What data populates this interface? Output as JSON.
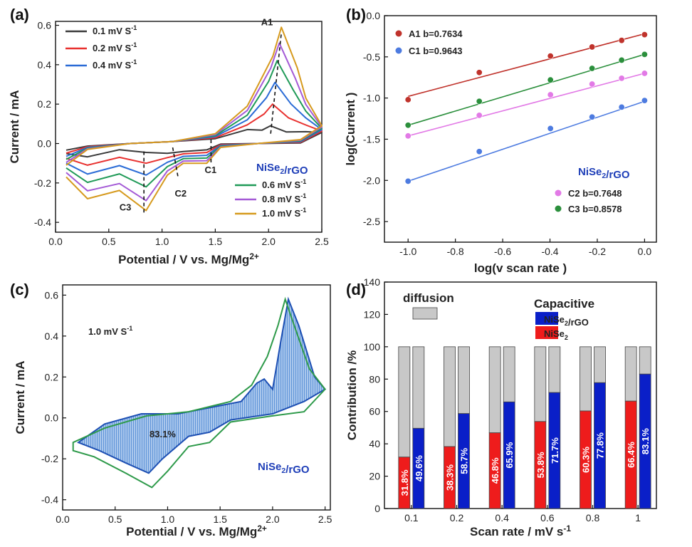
{
  "colors": {
    "v01": "#3a3a3a",
    "v02": "#e8312f",
    "v04": "#2a6bd6",
    "v06": "#1f9a57",
    "v08": "#a45ad6",
    "v10": "#d69a1e",
    "a1": "#c0332c",
    "c1": "#4d7be0",
    "c2": "#e27ae6",
    "c3": "#2b8f3c",
    "nicap": "#0a1fc8",
    "nise2cap": "#ee1c1c",
    "diffusion": "#c8c8c8",
    "shade": "#5e94d8",
    "cvline": "#2e9a4a",
    "material": "#1f3fb8"
  },
  "chart_data": [
    {
      "panel": "(a)",
      "type": "line",
      "xlabel": "Potential / V vs. Mg/Mg",
      "xlabel_sup": "2+",
      "ylabel": "Current / mA",
      "xlim": [
        0.0,
        2.5
      ],
      "ylim": [
        -0.45,
        0.62
      ],
      "xticks": [
        "0.0",
        "0.5",
        "1.0",
        "1.5",
        "2.0",
        "2.5"
      ],
      "yticks": [
        "-0.4",
        "-0.2",
        "0.0",
        "0.2",
        "0.4",
        "0.6"
      ],
      "material": "NiSe",
      "material_sub": "2",
      "material_tail": "/rGO",
      "series": [
        {
          "name": "0.1 mV S",
          "sup": "-1",
          "color_key": "v01",
          "anodic_peak": 0.09,
          "cathodic_peak": -0.045,
          "scale": 0.15
        },
        {
          "name": "0.2 mV S",
          "sup": "-1",
          "color_key": "v02",
          "anodic_peak": 0.2,
          "cathodic_peak": -0.1,
          "scale": 0.32
        },
        {
          "name": "0.4 mV S",
          "sup": "-1",
          "color_key": "v04",
          "anodic_peak": 0.31,
          "cathodic_peak": -0.16,
          "scale": 0.5
        },
        {
          "name": "0.6 mV S",
          "sup": "-1",
          "color_key": "v06",
          "anodic_peak": 0.42,
          "cathodic_peak": -0.22,
          "scale": 0.67
        },
        {
          "name": "0.8 mV S",
          "sup": "-1",
          "color_key": "v08",
          "anodic_peak": 0.51,
          "cathodic_peak": -0.29,
          "scale": 0.84
        },
        {
          "name": "1.0 mV S",
          "sup": "-1",
          "color_key": "v10",
          "anodic_peak": 0.59,
          "cathodic_peak": -0.34,
          "scale": 1.0
        }
      ],
      "annotations": [
        "A1",
        "C1",
        "C2",
        "C3"
      ]
    },
    {
      "panel": "(b)",
      "type": "scatter",
      "xlabel": "log(v scan rate )",
      "ylabel": "log(Current )",
      "xlim": [
        -1.1,
        0.05
      ],
      "ylim": [
        -2.75,
        0.0
      ],
      "xticks": [
        "-1.0",
        "-0.8",
        "-0.6",
        "-0.4",
        "-0.2",
        "0.0"
      ],
      "yticks": [
        "-2.5",
        "-2.0",
        "-1.5",
        "-1.0",
        "-0.5",
        "0.0"
      ],
      "x": [
        -1.0,
        -0.699,
        -0.398,
        -0.222,
        -0.097,
        0.0
      ],
      "material": "NiSe",
      "material_sub": "2",
      "material_tail": "/rGO",
      "series": [
        {
          "name": "A1 b=0.7634",
          "color_key": "a1",
          "y": [
            -1.02,
            -0.69,
            -0.49,
            -0.38,
            -0.3,
            -0.23
          ],
          "fit": [
            -0.98,
            -0.22
          ]
        },
        {
          "name": "C1 b=0.9643",
          "color_key": "c1",
          "y": [
            -2.01,
            -1.65,
            -1.37,
            -1.23,
            -1.11,
            -1.03
          ],
          "fit": [
            -2.01,
            -1.04
          ]
        },
        {
          "name": "C2 b=0.7648",
          "color_key": "c2",
          "y": [
            -1.46,
            -1.21,
            -0.96,
            -0.83,
            -0.76,
            -0.7
          ],
          "fit": [
            -1.46,
            -0.7
          ]
        },
        {
          "name": "C3 b=0.8578",
          "color_key": "c3",
          "y": [
            -1.33,
            -1.04,
            -0.78,
            -0.64,
            -0.54,
            -0.47
          ],
          "fit": [
            -1.33,
            -0.47
          ]
        }
      ]
    },
    {
      "panel": "(c)",
      "type": "area",
      "xlabel": "Potential / V vs. Mg/Mg",
      "xlabel_sup": "2+",
      "ylabel": "Current / mA",
      "xlim": [
        0.0,
        2.55
      ],
      "ylim": [
        -0.45,
        0.65
      ],
      "xticks": [
        "0.0",
        "0.5",
        "1.0",
        "1.5",
        "2.0",
        "2.5"
      ],
      "yticks": [
        "-0.4",
        "-0.2",
        "0.0",
        "0.2",
        "0.4",
        "0.6"
      ],
      "scan_label": "1.0 mV S",
      "scan_label_sup": "-1",
      "capacitive_percent": "83.1%",
      "material": "NiSe",
      "material_sub": "2",
      "material_tail": "/rGO",
      "cv_curve": {
        "upper": [
          [
            0.1,
            -0.12
          ],
          [
            0.4,
            -0.05
          ],
          [
            0.8,
            0.01
          ],
          [
            1.2,
            0.03
          ],
          [
            1.6,
            0.08
          ],
          [
            1.8,
            0.16
          ],
          [
            1.95,
            0.3
          ],
          [
            2.05,
            0.45
          ],
          [
            2.12,
            0.58
          ],
          [
            2.2,
            0.46
          ],
          [
            2.35,
            0.24
          ],
          [
            2.5,
            0.14
          ]
        ],
        "lower": [
          [
            2.5,
            0.14
          ],
          [
            2.3,
            0.03
          ],
          [
            2.0,
            0.01
          ],
          [
            1.6,
            -0.02
          ],
          [
            1.4,
            -0.12
          ],
          [
            1.2,
            -0.14
          ],
          [
            1.0,
            -0.26
          ],
          [
            0.85,
            -0.34
          ],
          [
            0.6,
            -0.27
          ],
          [
            0.3,
            -0.19
          ],
          [
            0.1,
            -0.16
          ]
        ]
      },
      "shaded_capacitive": {
        "upper": [
          [
            0.15,
            -0.12
          ],
          [
            0.4,
            -0.03
          ],
          [
            0.75,
            0.02
          ],
          [
            1.1,
            0.02
          ],
          [
            1.4,
            0.05
          ],
          [
            1.7,
            0.08
          ],
          [
            1.85,
            0.17
          ],
          [
            1.92,
            0.19
          ],
          [
            2.0,
            0.14
          ],
          [
            2.08,
            0.38
          ],
          [
            2.15,
            0.58
          ],
          [
            2.25,
            0.45
          ],
          [
            2.4,
            0.2
          ],
          [
            2.5,
            0.14
          ]
        ],
        "lower": [
          [
            2.5,
            0.14
          ],
          [
            2.3,
            0.08
          ],
          [
            2.0,
            0.02
          ],
          [
            1.6,
            -0.01
          ],
          [
            1.4,
            -0.07
          ],
          [
            1.2,
            -0.09
          ],
          [
            0.95,
            -0.2
          ],
          [
            0.82,
            -0.27
          ],
          [
            0.6,
            -0.22
          ],
          [
            0.35,
            -0.16
          ],
          [
            0.15,
            -0.12
          ]
        ]
      }
    },
    {
      "panel": "(d)",
      "type": "bar",
      "xlabel": "Scan rate / mV s",
      "xlabel_sup": "-1",
      "ylabel": "Contribution /%",
      "ylim": [
        0,
        140
      ],
      "yticks": [
        "0",
        "20",
        "40",
        "60",
        "80",
        "100",
        "120",
        "140"
      ],
      "categories": [
        "0.1",
        "0.2",
        "0.4",
        "0.6",
        "0.8",
        "1"
      ],
      "series": [
        {
          "name": "NiSe",
          "sub": "2",
          "color_key": "nise2cap",
          "values": [
            31.8,
            38.3,
            46.8,
            53.8,
            60.3,
            66.4
          ],
          "labels": [
            "31.8%",
            "38.3%",
            "46.8%",
            "53.8%",
            "60.3%",
            "66.4%"
          ]
        },
        {
          "name": "NiSe",
          "sub": "2",
          "tail": "/rGO",
          "color_key": "nicap",
          "values": [
            49.6,
            58.7,
            65.9,
            71.7,
            77.8,
            83.1
          ],
          "labels": [
            "49.6%",
            "58.7%",
            "65.9%",
            "71.7%",
            "77.8%",
            "83.1%"
          ]
        }
      ],
      "legend_diffusion": "diffusion",
      "legend_capacitive": "Capacitive"
    }
  ]
}
